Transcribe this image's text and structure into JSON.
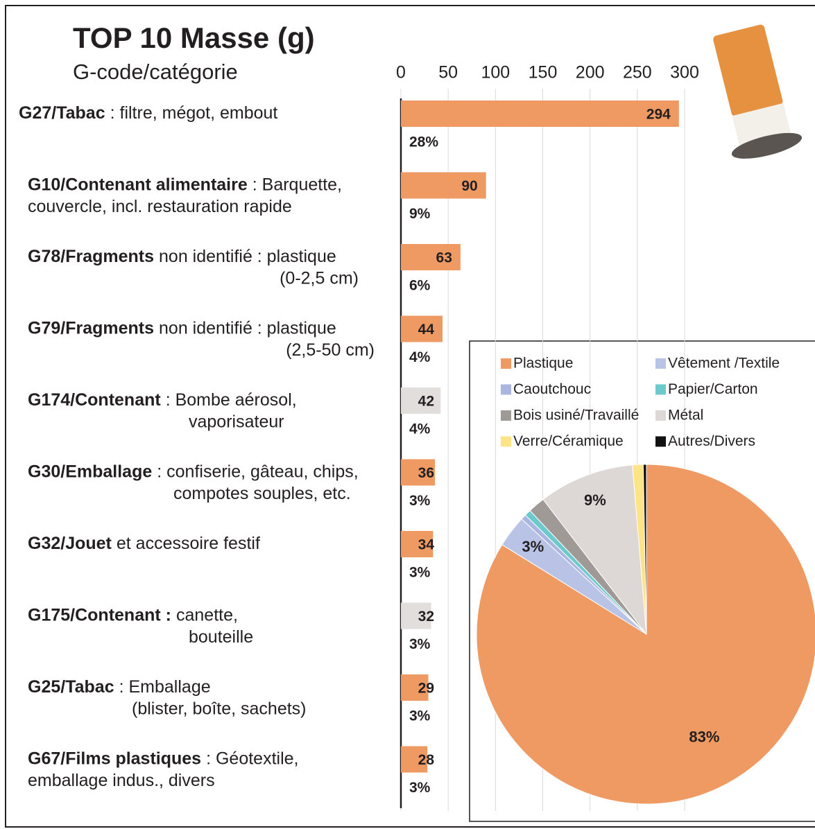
{
  "chart_data": [
    {
      "type": "bar",
      "title": "TOP 10 Masse (g)",
      "y_label": "G-code/catégorie",
      "categories": [
        "G27/Tabac",
        "G10/Contenant alimentaire",
        "G78/Fragments",
        "G79/Fragments",
        "G174/Contenant",
        "G30/Emballage",
        "G32/Jouet",
        "G175/Contenant :",
        "G25/Tabac",
        "G67/Films plastiques"
      ],
      "category_details": [
        [
          ": filtre, mégot, embout"
        ],
        [
          ": Barquette,",
          "couvercle, incl. restauration rapide"
        ],
        [
          "non identifié : plastique",
          "(0-2,5 cm)"
        ],
        [
          "non identifié : plastique",
          "(2,5-50 cm)"
        ],
        [
          ": Bombe aérosol,",
          "vaporisateur"
        ],
        [
          ": confiserie, gâteau, chips,",
          "compotes souples, etc."
        ],
        [
          "et accessoire festif"
        ],
        [
          "canette,",
          "bouteille"
        ],
        [
          ": Emballage",
          "(blister, boîte, sachets)"
        ],
        [
          ": Géotextile,",
          "emballage indus., divers"
        ]
      ],
      "values": [
        294,
        90,
        63,
        44,
        42,
        36,
        34,
        32,
        29,
        28
      ],
      "colors": [
        "#ef9a62",
        "#ef9a62",
        "#ef9a62",
        "#ef9a62",
        "#e2dedb",
        "#ef9a62",
        "#ef9a62",
        "#e2dedb",
        "#ef9a62",
        "#ef9a62"
      ],
      "shares": [
        28,
        9,
        6,
        4,
        4,
        3,
        3,
        3,
        3,
        3
      ],
      "share_labels": [
        "28%",
        "9%",
        "6%",
        "4%",
        "4%",
        "3%",
        "3%",
        "3%",
        "3%",
        "3%"
      ],
      "xlim": [
        0,
        300
      ],
      "xticks": [
        0,
        50,
        100,
        150,
        200,
        250,
        300
      ],
      "grid": true
    },
    {
      "type": "pie",
      "categories": [
        "Plastique",
        "Vêtement /Textile",
        "Caoutchouc",
        "Papier/Carton",
        "Bois usiné/Travaillé",
        "Métal",
        "Verre/Céramique",
        "Autres/Divers"
      ],
      "values": [
        83,
        3,
        0.5,
        0.6,
        1.6,
        9,
        1,
        0.3
      ],
      "value_labels": [
        "83%",
        "3%",
        null,
        null,
        null,
        "9%",
        null,
        null
      ],
      "colors": [
        "#ef9a62",
        "#b9c3e5",
        "#aab6df",
        "#6cc9cc",
        "#a09a96",
        "#ddd8d5",
        "#ffe487",
        "#111111"
      ],
      "legend": "top"
    }
  ]
}
